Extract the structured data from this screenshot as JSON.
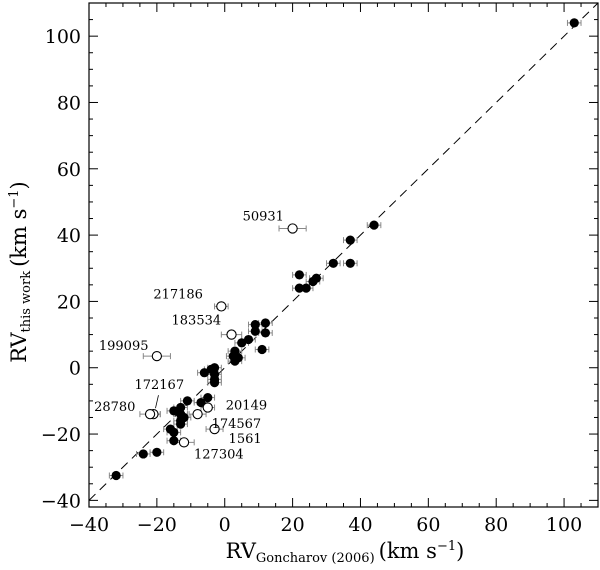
{
  "chart_data": {
    "type": "scatter",
    "title": "",
    "xlabel": {
      "main": "RV",
      "sub": "Goncharov (2006)",
      "unit": "(km s",
      "unit_exp": "−1",
      "unit_close": ")"
    },
    "ylabel": {
      "main": "RV",
      "sub": "this work",
      "unit": "(km s",
      "unit_exp": "−1",
      "unit_close": ")"
    },
    "xlim": [
      -40,
      110
    ],
    "ylim": [
      -42,
      110
    ],
    "x_ticks": [
      -40,
      -20,
      0,
      20,
      40,
      60,
      80,
      100
    ],
    "y_ticks": [
      -40,
      -20,
      0,
      20,
      40,
      60,
      80,
      100
    ],
    "x_tick_labels": [
      "−40",
      "−20",
      "0",
      "20",
      "40",
      "60",
      "80",
      "100"
    ],
    "y_tick_labels": [
      "−40",
      "−20",
      "0",
      "20",
      "40",
      "60",
      "80",
      "100"
    ],
    "grid": false,
    "reference_line": {
      "style": "dashed",
      "slope": 1,
      "intercept": 0
    },
    "series": [
      {
        "marker": "filled-circle",
        "points": [
          {
            "x": 103,
            "y": 104
          },
          {
            "x": 44,
            "y": 43
          },
          {
            "x": 37,
            "y": 38.5
          },
          {
            "x": 37,
            "y": 31.5
          },
          {
            "x": 32,
            "y": 31.5
          },
          {
            "x": 27,
            "y": 27
          },
          {
            "x": 26,
            "y": 26
          },
          {
            "x": 22,
            "y": 28
          },
          {
            "x": 22,
            "y": 24
          },
          {
            "x": 24,
            "y": 24
          },
          {
            "x": 12,
            "y": 13.5
          },
          {
            "x": 9,
            "y": 13
          },
          {
            "x": 9,
            "y": 11
          },
          {
            "x": 12,
            "y": 10.5
          },
          {
            "x": 7,
            "y": 8.5
          },
          {
            "x": 5,
            "y": 7.5
          },
          {
            "x": 11,
            "y": 5.5
          },
          {
            "x": 3,
            "y": 5
          },
          {
            "x": 2.5,
            "y": 3.5
          },
          {
            "x": 4,
            "y": 3
          },
          {
            "x": 3,
            "y": 2
          },
          {
            "x": -3,
            "y": 0
          },
          {
            "x": -4,
            "y": -0.5
          },
          {
            "x": -6,
            "y": -1.5
          },
          {
            "x": -3,
            "y": -2
          },
          {
            "x": -3,
            "y": -3.5
          },
          {
            "x": -3,
            "y": -4.5
          },
          {
            "x": -5,
            "y": -9
          },
          {
            "x": -7,
            "y": -10.5
          },
          {
            "x": -11,
            "y": -10
          },
          {
            "x": -13,
            "y": -12
          },
          {
            "x": -15,
            "y": -13
          },
          {
            "x": -13,
            "y": -14
          },
          {
            "x": -12,
            "y": -15
          },
          {
            "x": -13,
            "y": -16
          },
          {
            "x": -13,
            "y": -17
          },
          {
            "x": -16,
            "y": -18.5
          },
          {
            "x": -15,
            "y": -19.5
          },
          {
            "x": -15,
            "y": -22
          },
          {
            "x": -20,
            "y": -25.5
          },
          {
            "x": -24,
            "y": -26
          },
          {
            "x": -32,
            "y": -32.5
          }
        ]
      },
      {
        "marker": "open-circle",
        "points": [
          {
            "x": 20,
            "y": 42,
            "label": "50931",
            "xerr": 4
          },
          {
            "x": -1,
            "y": 18.5,
            "label": "217186",
            "xerr": 2
          },
          {
            "x": 2,
            "y": 10,
            "label": "183534",
            "xerr": 3
          },
          {
            "x": -20,
            "y": 3.5,
            "label": "199095",
            "xerr": 4
          },
          {
            "x": -21,
            "y": -14,
            "label": "172167",
            "xerr": 2
          },
          {
            "x": -22,
            "y": -14,
            "label": "28780",
            "xerr": 3
          },
          {
            "x": -5,
            "y": -12,
            "label": "20149",
            "xerr": 2
          },
          {
            "x": -8,
            "y": -14,
            "label": "174567",
            "xerr": 2.5
          },
          {
            "x": -3,
            "y": -18.5,
            "label": "1561",
            "xerr": 2.5
          },
          {
            "x": -12,
            "y": -22.5,
            "label": "127304",
            "xerr": 3
          }
        ]
      }
    ],
    "annotations": [
      "50931",
      "217186",
      "183534",
      "199095",
      "172167",
      "28780",
      "20149",
      "174567",
      "1561",
      "127304"
    ]
  }
}
